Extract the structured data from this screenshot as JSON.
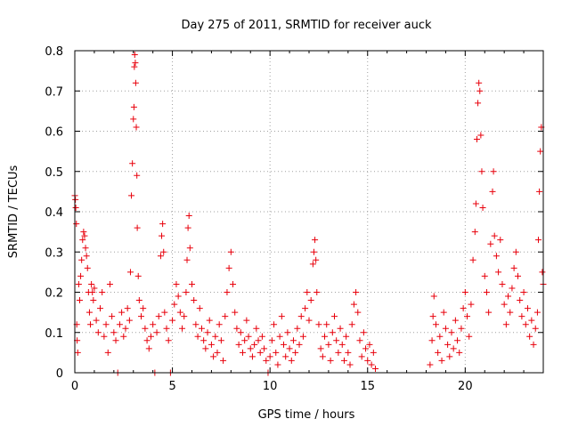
{
  "chart_data": {
    "type": "scatter",
    "title": "Day 275 of 2011, SRMTID for receiver auck",
    "xlabel": "GPS time / hours",
    "ylabel": "SRMTID / TECUs",
    "xlim": [
      0,
      24
    ],
    "ylim": [
      0,
      0.8
    ],
    "x_ticks": [
      0,
      5,
      10,
      15,
      20
    ],
    "x_tick_labels": [
      "0",
      "5",
      "10",
      "15",
      "20"
    ],
    "y_ticks": [
      0,
      0.1,
      0.2,
      0.3,
      0.4,
      0.5,
      0.6,
      0.7,
      0.8
    ],
    "y_tick_labels": [
      "0",
      "0.1",
      "0.2",
      "0.3",
      "0.4",
      "0.5",
      "0.6",
      "0.7",
      "0.8"
    ],
    "grid": true,
    "marker": "+",
    "series_color": "#e8000b",
    "series": [
      {
        "name": "SRMTID",
        "points": [
          [
            0.0,
            0.44
          ],
          [
            0.03,
            0.43
          ],
          [
            0.05,
            0.41
          ],
          [
            0.08,
            0.37
          ],
          [
            0.1,
            0.12
          ],
          [
            0.12,
            0.08
          ],
          [
            0.15,
            0.05
          ],
          [
            0.2,
            0.22
          ],
          [
            0.25,
            0.18
          ],
          [
            0.3,
            0.24
          ],
          [
            0.35,
            0.28
          ],
          [
            0.4,
            0.33
          ],
          [
            0.45,
            0.35
          ],
          [
            0.5,
            0.34
          ],
          [
            0.55,
            0.31
          ],
          [
            0.6,
            0.29
          ],
          [
            0.65,
            0.26
          ],
          [
            0.7,
            0.2
          ],
          [
            0.75,
            0.15
          ],
          [
            0.8,
            0.12
          ],
          [
            0.85,
            0.22
          ],
          [
            0.9,
            0.2
          ],
          [
            0.95,
            0.18
          ],
          [
            1.0,
            0.21
          ],
          [
            1.1,
            0.13
          ],
          [
            1.2,
            0.1
          ],
          [
            1.3,
            0.16
          ],
          [
            1.4,
            0.2
          ],
          [
            1.5,
            0.09
          ],
          [
            1.6,
            0.12
          ],
          [
            1.7,
            0.05
          ],
          [
            1.8,
            0.22
          ],
          [
            1.9,
            0.14
          ],
          [
            2.0,
            0.1
          ],
          [
            2.1,
            0.08
          ],
          [
            2.2,
            0.0
          ],
          [
            2.3,
            0.12
          ],
          [
            2.4,
            0.15
          ],
          [
            2.5,
            0.09
          ],
          [
            2.6,
            0.11
          ],
          [
            2.7,
            0.16
          ],
          [
            2.8,
            0.13
          ],
          [
            2.85,
            0.25
          ],
          [
            2.9,
            0.44
          ],
          [
            2.95,
            0.52
          ],
          [
            3.0,
            0.63
          ],
          [
            3.03,
            0.66
          ],
          [
            3.05,
            0.76
          ],
          [
            3.07,
            0.79
          ],
          [
            3.1,
            0.77
          ],
          [
            3.12,
            0.72
          ],
          [
            3.15,
            0.61
          ],
          [
            3.18,
            0.49
          ],
          [
            3.2,
            0.36
          ],
          [
            3.25,
            0.24
          ],
          [
            3.3,
            0.18
          ],
          [
            3.4,
            0.14
          ],
          [
            3.5,
            0.16
          ],
          [
            3.6,
            0.11
          ],
          [
            3.7,
            0.08
          ],
          [
            3.8,
            0.06
          ],
          [
            3.9,
            0.09
          ],
          [
            4.0,
            0.12
          ],
          [
            4.1,
            0.0
          ],
          [
            4.2,
            0.1
          ],
          [
            4.3,
            0.14
          ],
          [
            4.4,
            0.29
          ],
          [
            4.45,
            0.34
          ],
          [
            4.5,
            0.37
          ],
          [
            4.55,
            0.3
          ],
          [
            4.6,
            0.15
          ],
          [
            4.7,
            0.11
          ],
          [
            4.8,
            0.08
          ],
          [
            4.9,
            0.0
          ],
          [
            5.0,
            0.13
          ],
          [
            5.1,
            0.17
          ],
          [
            5.2,
            0.22
          ],
          [
            5.3,
            0.19
          ],
          [
            5.4,
            0.15
          ],
          [
            5.5,
            0.11
          ],
          [
            5.6,
            0.14
          ],
          [
            5.7,
            0.2
          ],
          [
            5.75,
            0.28
          ],
          [
            5.8,
            0.36
          ],
          [
            5.85,
            0.39
          ],
          [
            5.9,
            0.31
          ],
          [
            6.0,
            0.22
          ],
          [
            6.1,
            0.18
          ],
          [
            6.2,
            0.12
          ],
          [
            6.3,
            0.09
          ],
          [
            6.4,
            0.16
          ],
          [
            6.5,
            0.11
          ],
          [
            6.6,
            0.08
          ],
          [
            6.7,
            0.06
          ],
          [
            6.8,
            0.1
          ],
          [
            6.9,
            0.13
          ],
          [
            7.0,
            0.07
          ],
          [
            7.1,
            0.04
          ],
          [
            7.2,
            0.09
          ],
          [
            7.3,
            0.05
          ],
          [
            7.4,
            0.12
          ],
          [
            7.5,
            0.08
          ],
          [
            7.6,
            0.03
          ],
          [
            7.7,
            0.14
          ],
          [
            7.8,
            0.2
          ],
          [
            7.9,
            0.26
          ],
          [
            8.0,
            0.3
          ],
          [
            8.1,
            0.22
          ],
          [
            8.2,
            0.15
          ],
          [
            8.3,
            0.11
          ],
          [
            8.4,
            0.07
          ],
          [
            8.5,
            0.1
          ],
          [
            8.6,
            0.05
          ],
          [
            8.7,
            0.08
          ],
          [
            8.8,
            0.13
          ],
          [
            8.9,
            0.09
          ],
          [
            9.0,
            0.06
          ],
          [
            9.1,
            0.04
          ],
          [
            9.2,
            0.07
          ],
          [
            9.3,
            0.11
          ],
          [
            9.4,
            0.08
          ],
          [
            9.5,
            0.05
          ],
          [
            9.6,
            0.09
          ],
          [
            9.7,
            0.06
          ],
          [
            9.8,
            0.03
          ],
          [
            9.9,
            0.0
          ],
          [
            10.0,
            0.04
          ],
          [
            10.1,
            0.08
          ],
          [
            10.2,
            0.12
          ],
          [
            10.3,
            0.05
          ],
          [
            10.4,
            0.02
          ],
          [
            10.5,
            0.09
          ],
          [
            10.6,
            0.14
          ],
          [
            10.7,
            0.07
          ],
          [
            10.8,
            0.04
          ],
          [
            10.9,
            0.1
          ],
          [
            11.0,
            0.06
          ],
          [
            11.1,
            0.03
          ],
          [
            11.2,
            0.08
          ],
          [
            11.3,
            0.05
          ],
          [
            11.4,
            0.11
          ],
          [
            11.5,
            0.07
          ],
          [
            11.6,
            0.14
          ],
          [
            11.7,
            0.09
          ],
          [
            11.8,
            0.16
          ],
          [
            11.9,
            0.2
          ],
          [
            12.0,
            0.13
          ],
          [
            12.1,
            0.18
          ],
          [
            12.2,
            0.27
          ],
          [
            12.25,
            0.3
          ],
          [
            12.3,
            0.33
          ],
          [
            12.35,
            0.28
          ],
          [
            12.4,
            0.2
          ],
          [
            12.5,
            0.12
          ],
          [
            12.6,
            0.06
          ],
          [
            12.7,
            0.04
          ],
          [
            12.8,
            0.09
          ],
          [
            12.9,
            0.12
          ],
          [
            13.0,
            0.07
          ],
          [
            13.1,
            0.03
          ],
          [
            13.2,
            0.1
          ],
          [
            13.3,
            0.14
          ],
          [
            13.4,
            0.08
          ],
          [
            13.5,
            0.05
          ],
          [
            13.6,
            0.11
          ],
          [
            13.7,
            0.07
          ],
          [
            13.8,
            0.03
          ],
          [
            13.9,
            0.09
          ],
          [
            14.0,
            0.05
          ],
          [
            14.1,
            0.02
          ],
          [
            14.2,
            0.12
          ],
          [
            14.3,
            0.17
          ],
          [
            14.4,
            0.2
          ],
          [
            14.5,
            0.15
          ],
          [
            14.6,
            0.08
          ],
          [
            14.7,
            0.04
          ],
          [
            14.8,
            0.1
          ],
          [
            14.9,
            0.06
          ],
          [
            15.0,
            0.03
          ],
          [
            15.1,
            0.07
          ],
          [
            15.2,
            0.02
          ],
          [
            15.3,
            0.05
          ],
          [
            15.4,
            0.01
          ],
          [
            18.2,
            0.02
          ],
          [
            18.3,
            0.08
          ],
          [
            18.35,
            0.14
          ],
          [
            18.4,
            0.19
          ],
          [
            18.5,
            0.12
          ],
          [
            18.6,
            0.05
          ],
          [
            18.7,
            0.09
          ],
          [
            18.8,
            0.03
          ],
          [
            18.9,
            0.15
          ],
          [
            19.0,
            0.11
          ],
          [
            19.1,
            0.07
          ],
          [
            19.2,
            0.04
          ],
          [
            19.3,
            0.1
          ],
          [
            19.4,
            0.06
          ],
          [
            19.5,
            0.13
          ],
          [
            19.6,
            0.08
          ],
          [
            19.7,
            0.05
          ],
          [
            19.8,
            0.11
          ],
          [
            19.9,
            0.16
          ],
          [
            20.0,
            0.2
          ],
          [
            20.1,
            0.14
          ],
          [
            20.2,
            0.09
          ],
          [
            20.3,
            0.17
          ],
          [
            20.4,
            0.28
          ],
          [
            20.5,
            0.35
          ],
          [
            20.55,
            0.42
          ],
          [
            20.6,
            0.58
          ],
          [
            20.65,
            0.67
          ],
          [
            20.7,
            0.72
          ],
          [
            20.75,
            0.7
          ],
          [
            20.8,
            0.59
          ],
          [
            20.85,
            0.5
          ],
          [
            20.9,
            0.41
          ],
          [
            21.0,
            0.24
          ],
          [
            21.1,
            0.2
          ],
          [
            21.2,
            0.15
          ],
          [
            21.3,
            0.32
          ],
          [
            21.4,
            0.45
          ],
          [
            21.45,
            0.5
          ],
          [
            21.5,
            0.34
          ],
          [
            21.6,
            0.29
          ],
          [
            21.7,
            0.25
          ],
          [
            21.8,
            0.33
          ],
          [
            21.9,
            0.22
          ],
          [
            22.0,
            0.17
          ],
          [
            22.1,
            0.12
          ],
          [
            22.2,
            0.19
          ],
          [
            22.3,
            0.15
          ],
          [
            22.4,
            0.21
          ],
          [
            22.5,
            0.26
          ],
          [
            22.6,
            0.3
          ],
          [
            22.7,
            0.24
          ],
          [
            22.8,
            0.18
          ],
          [
            22.9,
            0.14
          ],
          [
            23.0,
            0.2
          ],
          [
            23.1,
            0.12
          ],
          [
            23.2,
            0.16
          ],
          [
            23.3,
            0.09
          ],
          [
            23.4,
            0.13
          ],
          [
            23.5,
            0.07
          ],
          [
            23.6,
            0.11
          ],
          [
            23.7,
            0.15
          ],
          [
            23.75,
            0.33
          ],
          [
            23.8,
            0.45
          ],
          [
            23.85,
            0.55
          ],
          [
            23.9,
            0.61
          ],
          [
            23.95,
            0.25
          ],
          [
            24.0,
            0.22
          ]
        ]
      }
    ]
  }
}
